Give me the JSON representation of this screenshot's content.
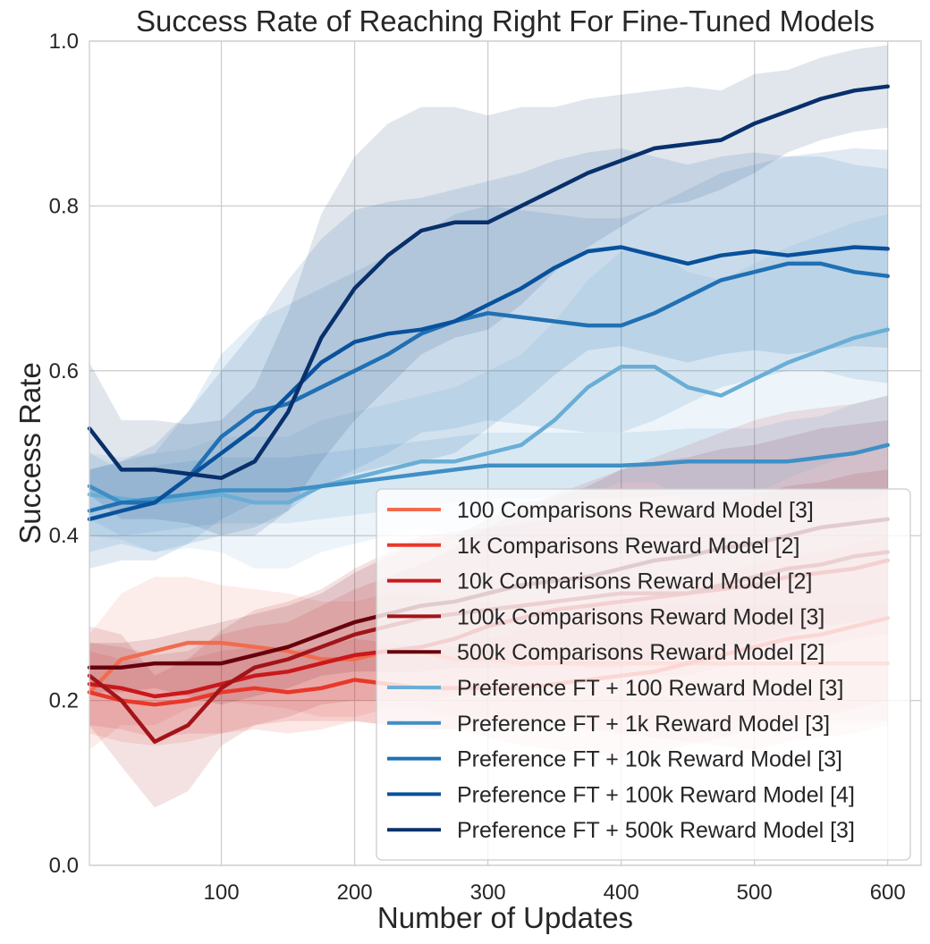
{
  "chart_data": {
    "type": "line",
    "title": "Success Rate of Reaching Right For Fine-Tuned Models",
    "xlabel": "Number of Updates",
    "ylabel": "Success Rate",
    "xlim": [
      1,
      625
    ],
    "ylim": [
      0.0,
      1.0
    ],
    "xticks": [
      100,
      200,
      300,
      400,
      500,
      600
    ],
    "yticks": [
      0.0,
      0.2,
      0.4,
      0.6,
      0.8,
      1.0
    ],
    "xtick_labels": [
      "100",
      "200",
      "300",
      "400",
      "500",
      "600"
    ],
    "ytick_labels": [
      "0.0",
      "0.2",
      "0.4",
      "0.6",
      "0.8",
      "1.0"
    ],
    "grid": true,
    "legend_position": "lower-right",
    "x": [
      1,
      25,
      50,
      75,
      100,
      125,
      150,
      175,
      200,
      225,
      250,
      275,
      300,
      325,
      350,
      375,
      400,
      425,
      450,
      475,
      500,
      525,
      550,
      575,
      600
    ],
    "series": [
      {
        "name": "100 Comparisons Reward Model [3]",
        "color": "#f26b4f",
        "values": [
          0.21,
          0.25,
          0.26,
          0.27,
          0.27,
          0.265,
          0.26,
          0.25,
          0.25,
          0.26,
          0.26,
          0.25,
          0.25,
          0.245,
          0.245,
          0.245,
          0.245,
          0.245,
          0.245,
          0.245,
          0.245,
          0.245,
          0.245,
          0.245,
          0.245
        ],
        "band": [
          0.07,
          0.08,
          0.09,
          0.08,
          0.07,
          0.07,
          0.07,
          0.07,
          0.07,
          0.07,
          0.07,
          0.07,
          0.07,
          0.07,
          0.07,
          0.07,
          0.07,
          0.07,
          0.07,
          0.07,
          0.07,
          0.07,
          0.07,
          0.07,
          0.07
        ]
      },
      {
        "name": "1k Comparisons Reward Model [2]",
        "color": "#e8382a",
        "values": [
          0.21,
          0.2,
          0.195,
          0.2,
          0.21,
          0.215,
          0.21,
          0.215,
          0.225,
          0.22,
          0.215,
          0.215,
          0.215,
          0.215,
          0.22,
          0.225,
          0.23,
          0.235,
          0.245,
          0.255,
          0.265,
          0.275,
          0.28,
          0.29,
          0.3
        ],
        "band": [
          0.05,
          0.05,
          0.05,
          0.05,
          0.05,
          0.05,
          0.05,
          0.05,
          0.05,
          0.05,
          0.05,
          0.05,
          0.06,
          0.07,
          0.08,
          0.09,
          0.1,
          0.1,
          0.1,
          0.1,
          0.1,
          0.1,
          0.1,
          0.1,
          0.1
        ]
      },
      {
        "name": "10k Comparisons Reward Model [2]",
        "color": "#c9181d",
        "values": [
          0.22,
          0.215,
          0.205,
          0.21,
          0.22,
          0.23,
          0.235,
          0.245,
          0.255,
          0.26,
          0.265,
          0.275,
          0.29,
          0.3,
          0.31,
          0.315,
          0.32,
          0.325,
          0.33,
          0.335,
          0.34,
          0.35,
          0.355,
          0.36,
          0.37
        ],
        "band": [
          0.05,
          0.05,
          0.05,
          0.05,
          0.06,
          0.06,
          0.06,
          0.07,
          0.08,
          0.09,
          0.1,
          0.11,
          0.12,
          0.13,
          0.14,
          0.15,
          0.16,
          0.17,
          0.18,
          0.19,
          0.2,
          0.2,
          0.2,
          0.2,
          0.2
        ]
      },
      {
        "name": "100k Comparisons Reward Model [3]",
        "color": "#a11419",
        "values": [
          0.23,
          0.2,
          0.15,
          0.17,
          0.215,
          0.24,
          0.25,
          0.265,
          0.28,
          0.29,
          0.3,
          0.305,
          0.31,
          0.315,
          0.32,
          0.325,
          0.33,
          0.33,
          0.33,
          0.34,
          0.35,
          0.36,
          0.365,
          0.375,
          0.38
        ],
        "band": [
          0.06,
          0.08,
          0.08,
          0.08,
          0.07,
          0.07,
          0.07,
          0.07,
          0.08,
          0.09,
          0.1,
          0.1,
          0.1,
          0.1,
          0.1,
          0.1,
          0.1,
          0.1,
          0.1,
          0.1,
          0.1,
          0.1,
          0.1,
          0.1,
          0.1
        ]
      },
      {
        "name": "500k Comparisons Reward Model [2]",
        "color": "#67000d",
        "values": [
          0.24,
          0.24,
          0.245,
          0.245,
          0.245,
          0.255,
          0.265,
          0.28,
          0.295,
          0.305,
          0.315,
          0.32,
          0.33,
          0.34,
          0.345,
          0.35,
          0.36,
          0.37,
          0.375,
          0.385,
          0.39,
          0.4,
          0.41,
          0.415,
          0.42
        ],
        "band": [
          0.03,
          0.03,
          0.03,
          0.04,
          0.05,
          0.05,
          0.05,
          0.05,
          0.06,
          0.07,
          0.08,
          0.08,
          0.09,
          0.1,
          0.1,
          0.11,
          0.12,
          0.12,
          0.12,
          0.12,
          0.12,
          0.12,
          0.12,
          0.12,
          0.12
        ]
      },
      {
        "name": "Preference FT + 100 Reward Model [3]",
        "color": "#6aaed6",
        "values": [
          0.45,
          0.445,
          0.44,
          0.445,
          0.45,
          0.44,
          0.44,
          0.46,
          0.47,
          0.48,
          0.49,
          0.49,
          0.5,
          0.51,
          0.54,
          0.58,
          0.605,
          0.605,
          0.58,
          0.57,
          0.59,
          0.61,
          0.625,
          0.64,
          0.65
        ],
        "band": [
          0.05,
          0.05,
          0.06,
          0.06,
          0.07,
          0.08,
          0.08,
          0.08,
          0.08,
          0.08,
          0.08,
          0.09,
          0.1,
          0.11,
          0.12,
          0.13,
          0.14,
          0.14,
          0.14,
          0.14,
          0.14,
          0.14,
          0.14,
          0.14,
          0.14
        ]
      },
      {
        "name": "Preference FT + 1k Reward Model [3]",
        "color": "#3f8fc5",
        "values": [
          0.46,
          0.44,
          0.445,
          0.45,
          0.455,
          0.455,
          0.455,
          0.46,
          0.465,
          0.47,
          0.475,
          0.48,
          0.485,
          0.485,
          0.485,
          0.485,
          0.485,
          0.487,
          0.49,
          0.49,
          0.49,
          0.49,
          0.495,
          0.5,
          0.51
        ],
        "band": [
          0.04,
          0.04,
          0.04,
          0.04,
          0.04,
          0.04,
          0.04,
          0.04,
          0.04,
          0.04,
          0.04,
          0.04,
          0.04,
          0.04,
          0.04,
          0.04,
          0.04,
          0.04,
          0.04,
          0.04,
          0.04,
          0.05,
          0.05,
          0.06,
          0.06
        ]
      },
      {
        "name": "Preference FT + 10k Reward Model [3]",
        "color": "#2070b4",
        "values": [
          0.43,
          0.44,
          0.44,
          0.47,
          0.52,
          0.55,
          0.56,
          0.58,
          0.6,
          0.62,
          0.645,
          0.66,
          0.67,
          0.665,
          0.66,
          0.655,
          0.655,
          0.67,
          0.69,
          0.71,
          0.72,
          0.73,
          0.73,
          0.72,
          0.715
        ],
        "band": [
          0.05,
          0.05,
          0.06,
          0.08,
          0.1,
          0.11,
          0.12,
          0.12,
          0.12,
          0.12,
          0.12,
          0.13,
          0.13,
          0.13,
          0.13,
          0.13,
          0.13,
          0.13,
          0.13,
          0.13,
          0.13,
          0.13,
          0.13,
          0.13,
          0.13
        ]
      },
      {
        "name": "Preference FT + 100k Reward Model [4]",
        "color": "#08519c",
        "values": [
          0.42,
          0.43,
          0.44,
          0.47,
          0.5,
          0.53,
          0.57,
          0.61,
          0.635,
          0.645,
          0.65,
          0.66,
          0.68,
          0.7,
          0.725,
          0.745,
          0.75,
          0.74,
          0.73,
          0.74,
          0.745,
          0.74,
          0.745,
          0.75,
          0.748
        ],
        "band": [
          0.06,
          0.06,
          0.07,
          0.08,
          0.1,
          0.12,
          0.14,
          0.15,
          0.16,
          0.16,
          0.16,
          0.16,
          0.15,
          0.14,
          0.13,
          0.12,
          0.12,
          0.12,
          0.12,
          0.12,
          0.12,
          0.12,
          0.12,
          0.12,
          0.12
        ]
      },
      {
        "name": "Preference FT + 500k Reward Model [3]",
        "color": "#08306b",
        "values": [
          0.53,
          0.48,
          0.48,
          0.475,
          0.47,
          0.49,
          0.55,
          0.64,
          0.7,
          0.74,
          0.77,
          0.78,
          0.78,
          0.8,
          0.82,
          0.84,
          0.855,
          0.87,
          0.875,
          0.88,
          0.9,
          0.915,
          0.93,
          0.94,
          0.945
        ],
        "band": [
          0.08,
          0.06,
          0.06,
          0.06,
          0.07,
          0.09,
          0.12,
          0.15,
          0.16,
          0.16,
          0.15,
          0.14,
          0.13,
          0.12,
          0.1,
          0.09,
          0.08,
          0.07,
          0.07,
          0.06,
          0.06,
          0.05,
          0.05,
          0.05,
          0.05
        ]
      }
    ]
  }
}
